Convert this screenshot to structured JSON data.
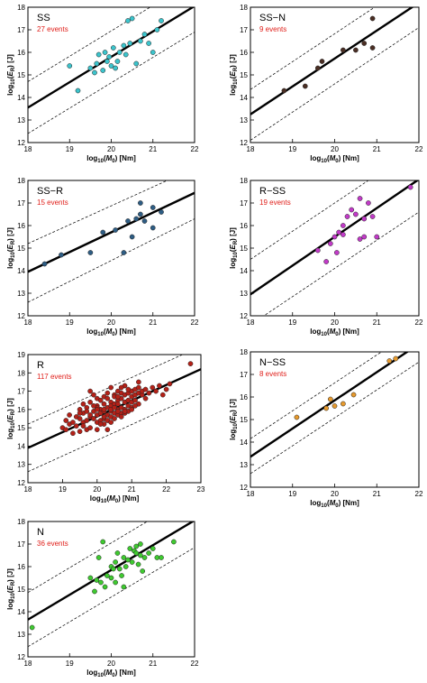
{
  "chart_data": [
    {
      "type": "scatter",
      "title": "SS",
      "annotation": "27 events",
      "xlabel_parts": [
        "log",
        "10",
        "(",
        "M",
        "0",
        ") [Nm]"
      ],
      "ylabel_parts": [
        "log",
        "10",
        "(",
        "E",
        "R",
        ") [J]"
      ],
      "xlim": [
        18,
        22
      ],
      "ylim": [
        12,
        18
      ],
      "xticks": [
        18,
        19,
        20,
        21,
        22
      ],
      "yticks": [
        12,
        13,
        14,
        15,
        16,
        17,
        18
      ],
      "marker_color": "#3cc4cc",
      "fit_line": [
        [
          18,
          13.55
        ],
        [
          22,
          18.05
        ]
      ],
      "bounds": [
        [
          [
            18,
            14.7
          ],
          [
            22,
            19.2
          ]
        ],
        [
          [
            18,
            12.4
          ],
          [
            22,
            16.9
          ]
        ]
      ],
      "x": [
        19.0,
        19.2,
        19.5,
        19.6,
        19.65,
        19.7,
        19.8,
        19.85,
        19.9,
        19.95,
        20.0,
        20.05,
        20.1,
        20.15,
        20.2,
        20.3,
        20.35,
        20.4,
        20.45,
        20.5,
        20.6,
        20.7,
        20.8,
        20.9,
        21.0,
        21.1,
        21.2
      ],
      "y": [
        15.4,
        14.3,
        15.3,
        15.1,
        15.5,
        15.9,
        15.2,
        16.0,
        15.6,
        15.8,
        15.4,
        16.2,
        15.3,
        15.6,
        16.0,
        16.3,
        15.9,
        17.4,
        16.4,
        17.5,
        15.5,
        16.5,
        16.8,
        16.4,
        16.0,
        17.0,
        17.4
      ]
    },
    {
      "type": "scatter",
      "title": "SS−N",
      "annotation": "9 events",
      "xlabel_parts": [
        "log",
        "10",
        "(",
        "M",
        "0",
        ") [Nm]"
      ],
      "ylabel_parts": [
        "log",
        "10",
        "(",
        "E",
        "R",
        ") [J]"
      ],
      "xlim": [
        18,
        22
      ],
      "ylim": [
        12,
        18
      ],
      "xticks": [
        18,
        19,
        20,
        21,
        22
      ],
      "yticks": [
        12,
        13,
        14,
        15,
        16,
        17,
        18
      ],
      "marker_color": "#4a2e24",
      "fit_line": [
        [
          18,
          13.25
        ],
        [
          22,
          18.2
        ]
      ],
      "bounds": [
        [
          [
            18,
            14.35
          ],
          [
            22,
            19.3
          ]
        ],
        [
          [
            18,
            12.1
          ],
          [
            22,
            17.1
          ]
        ]
      ],
      "x": [
        18.8,
        19.3,
        19.6,
        19.7,
        20.2,
        20.5,
        20.7,
        20.9,
        20.9
      ],
      "y": [
        14.3,
        14.5,
        15.3,
        15.6,
        16.1,
        16.1,
        16.4,
        17.5,
        16.2
      ]
    },
    {
      "type": "scatter",
      "title": "SS−R",
      "annotation": "15 events",
      "xlabel_parts": [
        "log",
        "10",
        "(",
        "M",
        "0",
        ") [Nm]"
      ],
      "ylabel_parts": [
        "log",
        "10",
        "(",
        "E",
        "R",
        ") [J]"
      ],
      "xlim": [
        18,
        22
      ],
      "ylim": [
        12,
        18
      ],
      "xticks": [
        18,
        19,
        20,
        21,
        22
      ],
      "yticks": [
        12,
        13,
        14,
        15,
        16,
        17,
        18
      ],
      "marker_color": "#2e5d84",
      "fit_line": [
        [
          18,
          13.95
        ],
        [
          22,
          17.45
        ]
      ],
      "bounds": [
        [
          [
            18,
            15.2
          ],
          [
            22,
            18.55
          ]
        ],
        [
          [
            18,
            12.6
          ],
          [
            22,
            16.3
          ]
        ]
      ],
      "x": [
        18.4,
        18.8,
        19.5,
        19.8,
        20.1,
        20.3,
        20.4,
        20.5,
        20.6,
        20.7,
        20.7,
        20.8,
        21.0,
        21.0,
        21.2
      ],
      "y": [
        14.3,
        14.7,
        14.8,
        15.7,
        15.8,
        14.8,
        16.2,
        15.5,
        16.3,
        17.0,
        16.5,
        16.2,
        16.8,
        15.9,
        16.6
      ]
    },
    {
      "type": "scatter",
      "title": "R−SS",
      "annotation": "19 events",
      "xlabel_parts": [
        "log",
        "10",
        "(",
        "M",
        "0",
        ") [Nm]"
      ],
      "ylabel_parts": [
        "log",
        "10",
        "(",
        "E",
        "R",
        ") [J]"
      ],
      "xlim": [
        18,
        22
      ],
      "ylim": [
        12,
        18
      ],
      "xticks": [
        18,
        19,
        20,
        21,
        22
      ],
      "yticks": [
        12,
        13,
        14,
        15,
        16,
        17,
        18
      ],
      "marker_color": "#c23ac8",
      "fit_line": [
        [
          18,
          12.95
        ],
        [
          22,
          18.05
        ]
      ],
      "bounds": [
        [
          [
            18,
            14.5
          ],
          [
            22,
            19.5
          ]
        ],
        [
          [
            18,
            11.6
          ],
          [
            22,
            16.6
          ]
        ]
      ],
      "x": [
        19.6,
        19.8,
        19.9,
        20.0,
        20.05,
        20.1,
        20.2,
        20.2,
        20.3,
        20.4,
        20.5,
        20.6,
        20.6,
        20.7,
        20.7,
        20.8,
        20.9,
        21.0,
        21.8
      ],
      "y": [
        14.9,
        14.4,
        15.2,
        15.5,
        14.8,
        15.7,
        15.6,
        16.0,
        16.4,
        16.7,
        16.5,
        17.2,
        15.4,
        16.3,
        15.5,
        17.0,
        16.4,
        15.5,
        17.7
      ]
    },
    {
      "type": "scatter",
      "title": "R",
      "annotation": "117 events",
      "xlabel_parts": [
        "log",
        "10",
        "(",
        "M",
        "0",
        ") [Nm]"
      ],
      "ylabel_parts": [
        "log",
        "10",
        "(",
        "E",
        "R",
        ") [J]"
      ],
      "xlim": [
        18,
        23
      ],
      "ylim": [
        12,
        19
      ],
      "xticks": [
        18,
        19,
        20,
        21,
        22,
        23
      ],
      "yticks": [
        12,
        13,
        14,
        15,
        16,
        17,
        18,
        19
      ],
      "marker_color": "#b42118",
      "fit_line": [
        [
          18,
          13.9
        ],
        [
          23,
          18.2
        ]
      ],
      "bounds": [
        [
          [
            18,
            15.2
          ],
          [
            23,
            19.45
          ]
        ],
        [
          [
            18,
            12.6
          ],
          [
            23,
            16.9
          ]
        ]
      ],
      "x": [
        19.0,
        19.1,
        19.1,
        19.2,
        19.2,
        19.3,
        19.3,
        19.4,
        19.4,
        19.5,
        19.5,
        19.5,
        19.6,
        19.6,
        19.6,
        19.7,
        19.7,
        19.7,
        19.8,
        19.8,
        19.8,
        19.8,
        19.9,
        19.9,
        19.9,
        20.0,
        20.0,
        20.0,
        20.0,
        20.0,
        20.1,
        20.1,
        20.1,
        20.1,
        20.2,
        20.2,
        20.2,
        20.2,
        20.2,
        20.3,
        20.3,
        20.3,
        20.3,
        20.4,
        20.4,
        20.4,
        20.4,
        20.4,
        20.5,
        20.5,
        20.5,
        20.5,
        20.6,
        20.6,
        20.6,
        20.6,
        20.6,
        20.7,
        20.7,
        20.7,
        20.7,
        20.8,
        20.8,
        20.8,
        20.8,
        20.9,
        20.9,
        20.9,
        20.9,
        21.0,
        21.0,
        21.0,
        21.0,
        21.1,
        21.1,
        21.1,
        21.2,
        21.2,
        21.2,
        21.3,
        21.3,
        21.4,
        21.4,
        21.5,
        21.6,
        21.7,
        21.8,
        21.9,
        22.0,
        22.1,
        22.7,
        19.6,
        19.8,
        20.0,
        20.2,
        20.4,
        20.6,
        20.8,
        21.0,
        20.1,
        20.3,
        20.5,
        20.7,
        20.9,
        19.9,
        20.6,
        20.3,
        20.8,
        19.5,
        21.2,
        20.0,
        20.4,
        20.7,
        21.1,
        19.7,
        20.2,
        20.5
      ],
      "y": [
        15.0,
        14.9,
        15.4,
        15.2,
        15.7,
        15.3,
        14.7,
        15.6,
        15.1,
        15.5,
        16.0,
        14.8,
        15.3,
        15.8,
        16.3,
        15.4,
        16.1,
        14.9,
        15.6,
        16.4,
        15.0,
        17.0,
        15.9,
        15.5,
        16.8,
        15.7,
        16.2,
        15.3,
        14.9,
        16.6,
        16.0,
        15.4,
        16.5,
        15.8,
        16.3,
        15.9,
        15.5,
        16.7,
        15.2,
        16.1,
        15.7,
        16.9,
        15.4,
        16.4,
        15.9,
        16.2,
        17.2,
        15.6,
        16.3,
        15.8,
        16.8,
        15.5,
        16.5,
        16.0,
        15.7,
        17.0,
        16.3,
        16.6,
        16.1,
        15.8,
        16.9,
        16.4,
        16.8,
        16.0,
        17.3,
        16.5,
        16.9,
        16.2,
        15.9,
        16.7,
        17.0,
        16.4,
        16.1,
        16.8,
        17.1,
        16.5,
        16.9,
        16.3,
        17.2,
        16.8,
        17.0,
        16.6,
        17.1,
        16.9,
        17.2,
        17.0,
        17.3,
        16.8,
        17.1,
        17.4,
        18.5,
        15.1,
        15.7,
        16.1,
        15.6,
        16.0,
        15.9,
        15.8,
        16.0,
        15.2,
        16.6,
        16.7,
        15.6,
        17.1,
        16.2,
        16.7,
        14.9,
        15.9,
        15.8,
        17.5,
        16.0,
        15.3,
        17.2,
        16.2,
        15.9,
        16.0,
        16.1
      ]
    },
    {
      "type": "scatter",
      "title": "N−SS",
      "annotation": "8 events",
      "xlabel_parts": [
        "log",
        "10",
        "(",
        "M",
        "0",
        ") [Nm]"
      ],
      "ylabel_parts": [
        "log",
        "10",
        "(",
        "E",
        "R",
        ") [J]"
      ],
      "xlim": [
        18,
        22
      ],
      "ylim": [
        12,
        18
      ],
      "xticks": [
        18,
        19,
        20,
        21,
        22
      ],
      "yticks": [
        12,
        13,
        14,
        15,
        16,
        17,
        18
      ],
      "marker_color": "#e69a2e",
      "fit_line": [
        [
          18,
          13.35
        ],
        [
          22,
          18.35
        ]
      ],
      "bounds": [
        [
          [
            18,
            14.15
          ],
          [
            22,
            19.1
          ]
        ],
        [
          [
            18,
            12.6
          ],
          [
            22,
            17.55
          ]
        ]
      ],
      "x": [
        19.1,
        19.8,
        19.9,
        20.0,
        20.2,
        20.45,
        21.3,
        21.45
      ],
      "y": [
        15.1,
        15.5,
        15.9,
        15.6,
        15.7,
        16.1,
        17.6,
        17.7
      ]
    },
    {
      "type": "scatter",
      "title": "N",
      "annotation": "36 events",
      "xlabel_parts": [
        "log",
        "10",
        "(",
        "M",
        "0",
        ") [Nm]"
      ],
      "ylabel_parts": [
        "log",
        "10",
        "(",
        "E",
        "R",
        ") [J]"
      ],
      "xlim": [
        18,
        22
      ],
      "ylim": [
        12,
        18
      ],
      "xticks": [
        18,
        19,
        20,
        21,
        22
      ],
      "yticks": [
        12,
        13,
        14,
        15,
        16,
        17,
        18
      ],
      "marker_color": "#3fca30",
      "fit_line": [
        [
          18,
          13.65
        ],
        [
          22,
          18.05
        ]
      ],
      "bounds": [
        [
          [
            18,
            14.85
          ],
          [
            22,
            19.25
          ]
        ],
        [
          [
            18,
            12.45
          ],
          [
            22,
            16.85
          ]
        ]
      ],
      "x": [
        18.1,
        19.5,
        19.6,
        19.7,
        19.75,
        19.8,
        19.85,
        19.9,
        20.0,
        20.05,
        20.1,
        20.1,
        20.15,
        20.2,
        20.25,
        20.3,
        20.3,
        20.35,
        20.4,
        20.45,
        20.5,
        20.55,
        20.6,
        20.65,
        20.7,
        20.7,
        20.75,
        20.8,
        20.9,
        21.0,
        21.1,
        21.2,
        21.5,
        19.65,
        20.0,
        20.6
      ],
      "y": [
        13.3,
        15.5,
        14.9,
        16.4,
        15.3,
        17.1,
        15.1,
        15.6,
        16.0,
        15.9,
        16.2,
        15.3,
        16.6,
        15.9,
        15.6,
        16.4,
        15.1,
        16.0,
        16.3,
        16.8,
        16.2,
        16.7,
        16.9,
        16.1,
        16.5,
        17.0,
        15.8,
        16.4,
        16.6,
        16.8,
        16.4,
        16.4,
        17.1,
        15.4,
        15.5,
        16.6
      ]
    }
  ]
}
